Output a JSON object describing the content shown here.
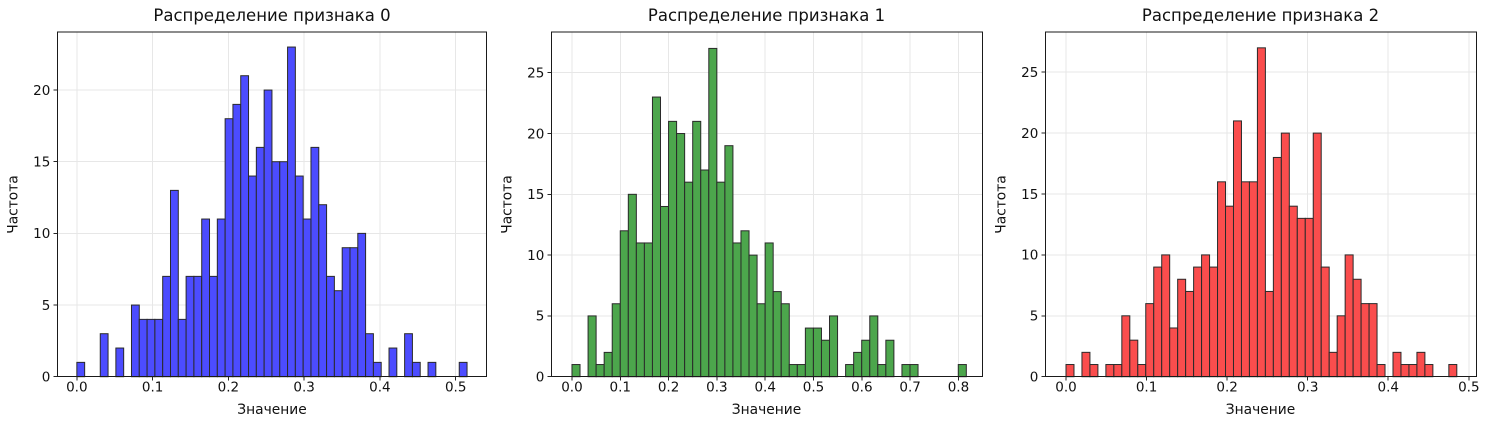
{
  "figure": {
    "background": "#ffffff",
    "grid_color": "#e7e7e7",
    "spine_color": "#1a1a1a",
    "tick_color": "#262626",
    "text_color": "#111111"
  },
  "chart_data": [
    {
      "type": "bar",
      "subtype": "histogram",
      "title": "Распределение признака 0",
      "xlabel": "Значение",
      "ylabel": "Частота",
      "bar_color": "#4c4cff",
      "edge_color": "#2a2a2a",
      "bin_start": 0.0,
      "bin_width": 0.0103,
      "counts": [
        1,
        0,
        0,
        3,
        0,
        2,
        0,
        5,
        4,
        4,
        4,
        7,
        13,
        4,
        7,
        7,
        11,
        7,
        11,
        18,
        19,
        21,
        14,
        16,
        20,
        15,
        15,
        23,
        14,
        11,
        16,
        12,
        7,
        6,
        9,
        9,
        10,
        3,
        1,
        0,
        2,
        0,
        3,
        1,
        0,
        1,
        0,
        0,
        0,
        1
      ],
      "xtick_values": [
        0.0,
        0.1,
        0.2,
        0.3,
        0.4,
        0.5
      ],
      "xtick_labels": [
        "0.0",
        "0.1",
        "0.2",
        "0.3",
        "0.4",
        "0.5"
      ],
      "ytick_values": [
        0,
        5,
        10,
        15,
        20
      ],
      "ytick_labels": [
        "0",
        "5",
        "10",
        "15",
        "20"
      ],
      "xlim": [
        -0.0258,
        0.5408
      ],
      "ylim": [
        0,
        24.05
      ],
      "grid": true
    },
    {
      "type": "bar",
      "subtype": "histogram",
      "title": "Распределение признака 1",
      "xlabel": "Значение",
      "ylabel": "Частота",
      "bar_color": "#4ca64c",
      "edge_color": "#2a2a2a",
      "bin_start": 0.0,
      "bin_width": 0.01666,
      "counts": [
        1,
        0,
        5,
        1,
        2,
        6,
        12,
        15,
        11,
        11,
        23,
        14,
        21,
        20,
        16,
        21,
        17,
        27,
        16,
        19,
        11,
        12,
        10,
        6,
        11,
        7,
        6,
        1,
        1,
        4,
        4,
        3,
        5,
        0,
        1,
        2,
        3,
        5,
        1,
        3,
        0,
        1,
        1,
        0,
        0,
        0,
        0,
        0,
        1
      ],
      "xtick_values": [
        0.0,
        0.1,
        0.2,
        0.3,
        0.4,
        0.5,
        0.6,
        0.7,
        0.8
      ],
      "xtick_labels": [
        "0.0",
        "0.1",
        "0.2",
        "0.3",
        "0.4",
        "0.5",
        "0.6",
        "0.7",
        "0.8"
      ],
      "ytick_values": [
        0,
        5,
        10,
        15,
        20,
        25
      ],
      "ytick_labels": [
        "0",
        "5",
        "10",
        "15",
        "20",
        "25"
      ],
      "xlim": [
        -0.0428,
        0.8494
      ],
      "ylim": [
        0,
        28.35
      ],
      "grid": true
    },
    {
      "type": "bar",
      "subtype": "histogram",
      "title": "Распределение признака 2",
      "xlabel": "Значение",
      "ylabel": "Частота",
      "bar_color": "#fa4d4d",
      "edge_color": "#2a2a2a",
      "bin_start": 0.0,
      "bin_width": 0.0099,
      "counts": [
        1,
        0,
        2,
        1,
        0,
        1,
        1,
        5,
        3,
        1,
        6,
        9,
        10,
        4,
        8,
        7,
        9,
        10,
        9,
        16,
        14,
        21,
        16,
        16,
        27,
        7,
        18,
        20,
        14,
        13,
        13,
        20,
        9,
        2,
        5,
        10,
        8,
        6,
        6,
        1,
        0,
        2,
        1,
        1,
        2,
        1,
        0,
        0,
        1
      ],
      "xtick_values": [
        0.0,
        0.1,
        0.2,
        0.3,
        0.4,
        0.5
      ],
      "xtick_labels": [
        "0.0",
        "0.1",
        "0.2",
        "0.3",
        "0.4",
        "0.5"
      ],
      "ytick_values": [
        0,
        5,
        10,
        15,
        20,
        25
      ],
      "ytick_labels": [
        "0",
        "5",
        "10",
        "15",
        "20",
        "25"
      ],
      "xlim": [
        -0.0257,
        0.5093
      ],
      "ylim": [
        0,
        28.3
      ],
      "grid": true
    }
  ]
}
